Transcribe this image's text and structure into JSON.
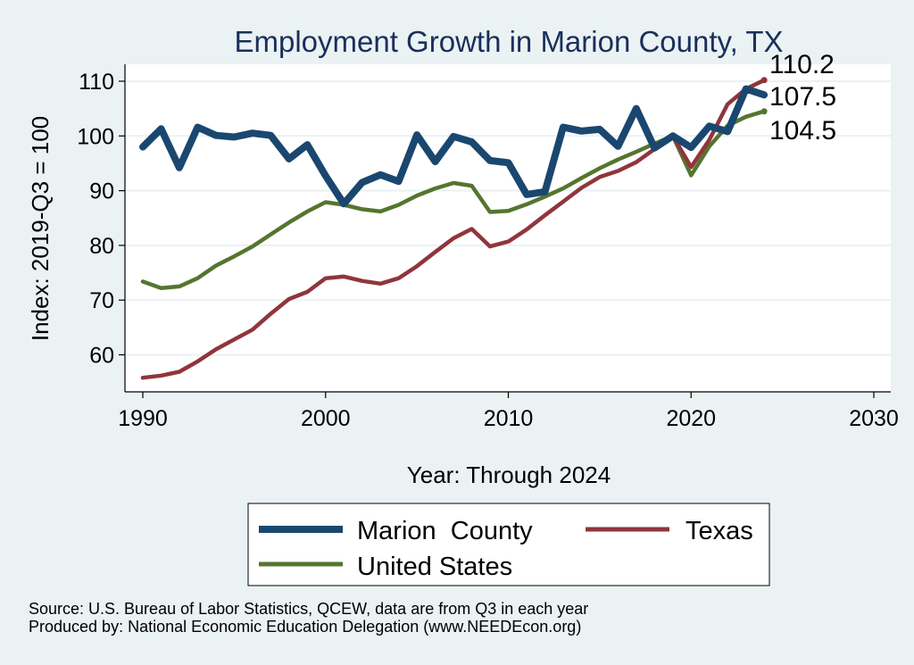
{
  "chart_data": {
    "type": "line",
    "title": "Employment Growth in Marion County, TX",
    "xlabel": "Year: Through 2024",
    "ylabel": "Index: 2019-Q3 = 100",
    "xlim": [
      1990,
      2030
    ],
    "ylim": [
      54,
      112
    ],
    "x_ticks": [
      "1990",
      "2000",
      "2010",
      "2020",
      "2030"
    ],
    "y_ticks": [
      "60",
      "70",
      "80",
      "90",
      "100",
      "110"
    ],
    "grid": true,
    "legend_position": "bottom",
    "x": [
      1990,
      1991,
      1992,
      1993,
      1994,
      1995,
      1996,
      1997,
      1998,
      1999,
      2000,
      2001,
      2002,
      2003,
      2004,
      2005,
      2006,
      2007,
      2008,
      2009,
      2010,
      2011,
      2012,
      2013,
      2014,
      2015,
      2016,
      2017,
      2018,
      2019,
      2020,
      2021,
      2022,
      2023,
      2024
    ],
    "series": [
      {
        "name": "Marion  County",
        "color": "#1a476f",
        "values": [
          98.0,
          101.3,
          94.2,
          101.6,
          100.1,
          99.8,
          100.5,
          100.1,
          95.8,
          98.4,
          92.7,
          87.6,
          91.5,
          92.9,
          91.7,
          100.2,
          95.3,
          99.9,
          98.9,
          95.5,
          95.1,
          89.3,
          89.8,
          101.6,
          100.9,
          101.2,
          98.1,
          105.0,
          97.8,
          100.0,
          97.9,
          101.8,
          100.8,
          108.6,
          107.5
        ],
        "end_label": "107.5"
      },
      {
        "name": "Texas",
        "color": "#90353b",
        "values": [
          55.8,
          56.2,
          56.9,
          58.8,
          61.0,
          62.8,
          64.6,
          67.5,
          70.2,
          71.5,
          74.0,
          74.3,
          73.5,
          73.0,
          74.0,
          76.2,
          78.8,
          81.3,
          83.0,
          79.8,
          80.7,
          82.9,
          85.5,
          88.0,
          90.5,
          92.5,
          93.6,
          95.2,
          97.6,
          100.0,
          94.3,
          99.3,
          105.8,
          108.6,
          110.2
        ],
        "end_label": "110.2"
      },
      {
        "name": "United States",
        "color": "#55752f",
        "values": [
          73.4,
          72.2,
          72.5,
          74.0,
          76.3,
          78.0,
          79.8,
          82.0,
          84.2,
          86.2,
          87.9,
          87.4,
          86.6,
          86.2,
          87.4,
          89.1,
          90.4,
          91.4,
          90.9,
          86.1,
          86.3,
          87.5,
          88.9,
          90.4,
          92.3,
          94.1,
          95.7,
          97.1,
          98.6,
          100.0,
          92.8,
          98.1,
          101.9,
          103.5,
          104.5
        ],
        "end_label": "104.5"
      }
    ]
  },
  "legend": {
    "items": [
      {
        "label": "Marion  County",
        "color": "#1a476f"
      },
      {
        "label": "Texas",
        "color": "#90353b"
      },
      {
        "label": "United States",
        "color": "#55752f"
      }
    ]
  },
  "footer": {
    "source": "Source: U.S. Bureau of Labor Statistics, QCEW, data are from Q3 in each year",
    "produced_by": "Produced by: National Economic Education Delegation (www.NEEDEcon.org)"
  },
  "colors": {
    "background": "#eaf2f3",
    "plot_region": "#ffffff",
    "grid": "#eaf2f3",
    "title": "#1a2f5a"
  }
}
